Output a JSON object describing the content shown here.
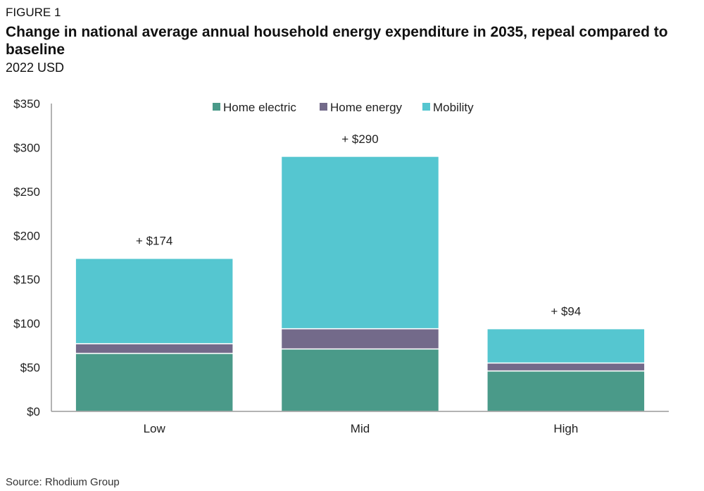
{
  "figure_label": "FIGURE 1",
  "title": "Change in national average annual household energy expenditure in 2035, repeal compared to baseline",
  "subtitle": "2022 USD",
  "source": "Source: Rhodium Group",
  "colors": {
    "home_electric": "#4a9a89",
    "home_energy": "#736a8a",
    "mobility": "#55c6d0",
    "axis": "#9a9a9a"
  },
  "chart_data": {
    "type": "bar",
    "stacked": true,
    "title": "Change in national average annual household energy expenditure in 2035, repeal compared to baseline",
    "ylabel": "2022 USD",
    "xlabel": "",
    "categories": [
      "Low",
      "Mid",
      "High"
    ],
    "series": [
      {
        "name": "Home electric",
        "values": [
          66,
          71,
          46
        ]
      },
      {
        "name": "Home energy",
        "values": [
          11,
          23,
          9
        ]
      },
      {
        "name": "Mobility",
        "values": [
          97,
          196,
          39
        ]
      }
    ],
    "totals": [
      174,
      290,
      94
    ],
    "total_labels": [
      "+ $174",
      "+ $290",
      "+ $94"
    ],
    "ylim": [
      0,
      350
    ],
    "yticks": [
      0,
      50,
      100,
      150,
      200,
      250,
      300,
      350
    ],
    "ytick_labels": [
      "$0",
      "$50",
      "$100",
      "$150",
      "$200",
      "$250",
      "$300",
      "$350"
    ],
    "legend": [
      "Home electric",
      "Home energy",
      "Mobility"
    ],
    "legend_position": "top-center",
    "grid": false
  }
}
